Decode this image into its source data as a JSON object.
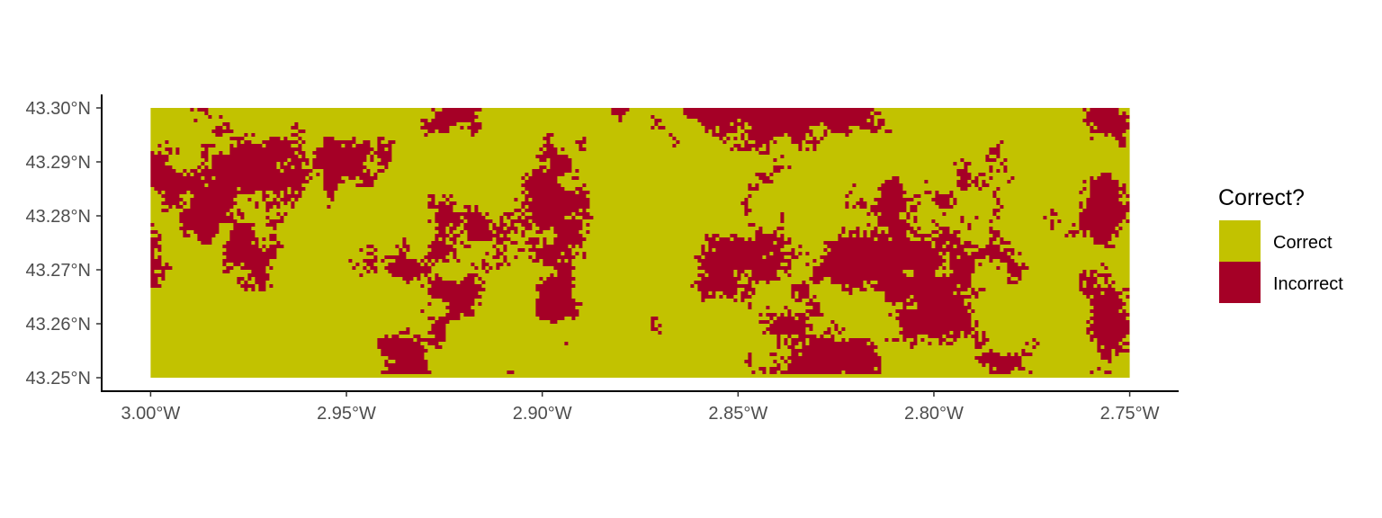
{
  "chart_data": {
    "type": "heatmap",
    "title": "",
    "xlabel": "",
    "ylabel": "",
    "x_ticks": [
      "3.00°W",
      "2.95°W",
      "2.90°W",
      "2.85°W",
      "2.80°W",
      "2.75°W"
    ],
    "x_tick_values": [
      -3.0,
      -2.95,
      -2.9,
      -2.85,
      -2.8,
      -2.75
    ],
    "y_ticks": [
      "43.25°N",
      "43.26°N",
      "43.27°N",
      "43.28°N",
      "43.29°N",
      "43.30°N"
    ],
    "y_tick_values": [
      43.25,
      43.26,
      43.27,
      43.28,
      43.29,
      43.3
    ],
    "xlim": [
      -3.0125,
      -2.7375
    ],
    "ylim": [
      43.2475,
      43.3025
    ],
    "extent": {
      "lon": [
        -3.0,
        -2.75
      ],
      "lat": [
        43.25,
        43.3
      ]
    },
    "grid": false,
    "legend": {
      "title": "Correct?",
      "position": "right",
      "entries": [
        {
          "label": "Correct",
          "color": "#c2c200"
        },
        {
          "label": "Incorrect",
          "color": "#a50026"
        }
      ]
    },
    "approx_fraction_incorrect": 0.35
  }
}
